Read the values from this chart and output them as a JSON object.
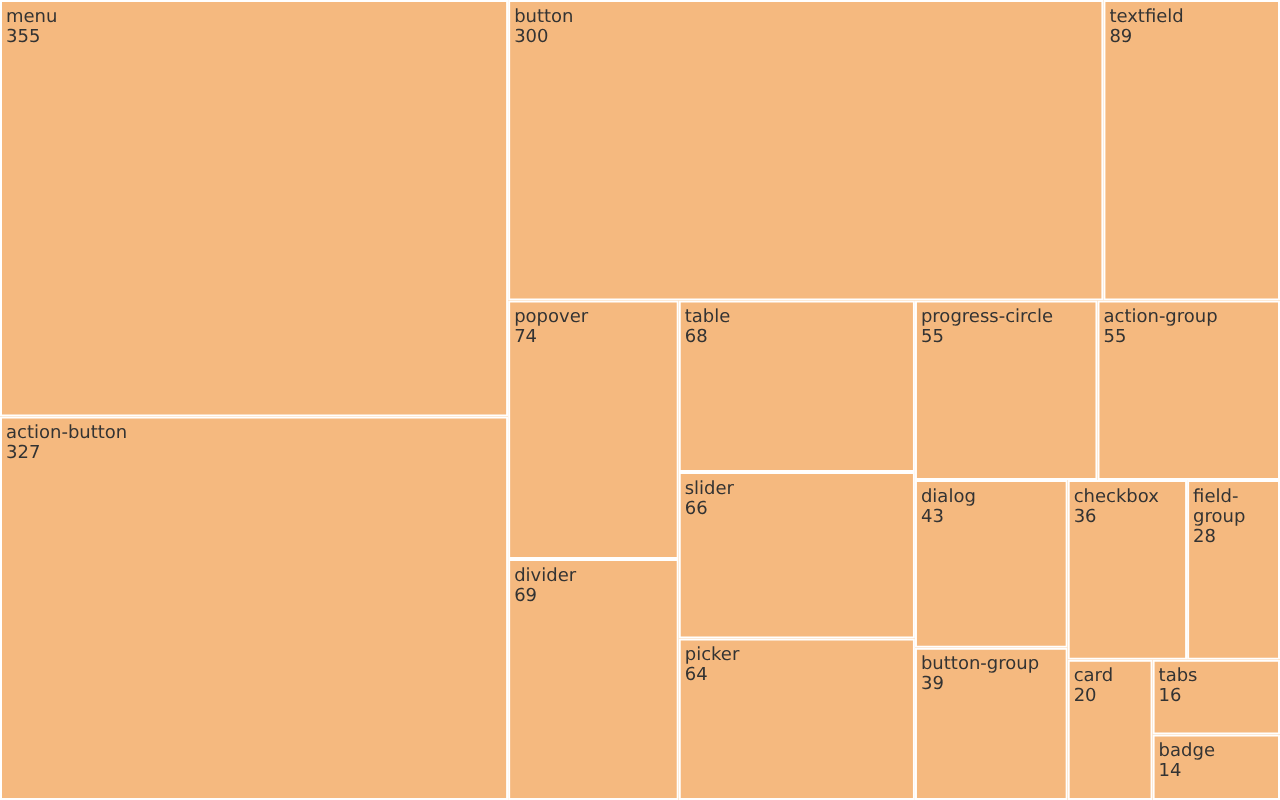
{
  "chart_data": {
    "type": "other",
    "color": "#f5b97f",
    "categories": [
      "menu",
      "action-button",
      "button",
      "textfield",
      "popover",
      "divider",
      "table",
      "slider",
      "picker",
      "progress-circle",
      "action-group",
      "dialog",
      "button-group",
      "checkbox",
      "field-group",
      "card",
      "tabs",
      "badge"
    ],
    "values": [
      355,
      327,
      300,
      89,
      74,
      69,
      68,
      66,
      64,
      55,
      55,
      43,
      39,
      36,
      28,
      20,
      16,
      14
    ],
    "value_labels": [
      "355",
      "327",
      "300",
      "89",
      "74",
      "69",
      "68",
      "66",
      "64",
      "55",
      "55",
      "43",
      "39",
      "36",
      "28",
      "20",
      "16",
      "14"
    ]
  }
}
